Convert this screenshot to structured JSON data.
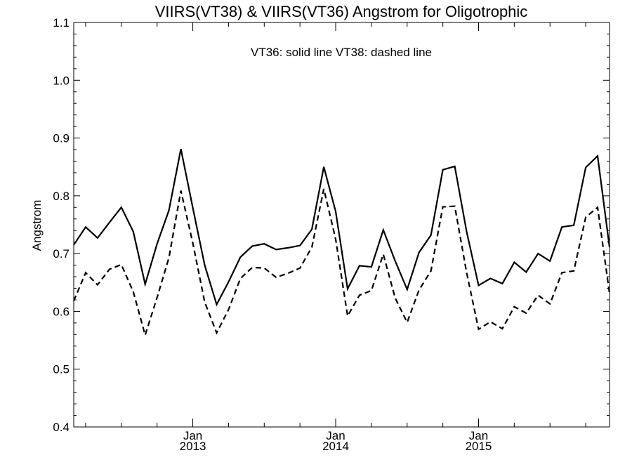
{
  "chart_data": {
    "type": "line",
    "title": "VIIRS(VT38) & VIIRS(VT36)  Angstrom for Oligotrophic",
    "annotation": "VT36: solid line   VT38: dashed line",
    "xlabel": "",
    "ylabel": "Angstrom",
    "ylim": [
      0.4,
      1.1
    ],
    "yticks": [
      0.4,
      0.5,
      0.6,
      0.7,
      0.8,
      0.9,
      1.0,
      1.1
    ],
    "ytick_labels": [
      "0.4",
      "0.5",
      "0.6",
      "0.7",
      "0.8",
      "0.9",
      "1.0",
      "1.1"
    ],
    "x_range": [
      "2012-03",
      "2015-12"
    ],
    "xticks_major": [
      {
        "x": "2013-01",
        "line1": "Jan",
        "line2": "2013"
      },
      {
        "x": "2014-01",
        "line1": "Jan",
        "line2": "2014"
      },
      {
        "x": "2015-01",
        "line1": "Jan",
        "line2": "2015"
      }
    ],
    "xticks_minor": [
      "2012-04",
      "2012-07",
      "2012-10",
      "2013-04",
      "2013-07",
      "2013-10",
      "2014-04",
      "2014-07",
      "2014-10",
      "2015-04",
      "2015-07",
      "2015-10"
    ],
    "grid": false,
    "legend": "none",
    "x": [
      "2012-03",
      "2012-04",
      "2012-05",
      "2012-06",
      "2012-07",
      "2012-08",
      "2012-09",
      "2012-10",
      "2012-11",
      "2012-12",
      "2013-01",
      "2013-02",
      "2013-03",
      "2013-04",
      "2013-05",
      "2013-06",
      "2013-07",
      "2013-08",
      "2013-09",
      "2013-10",
      "2013-11",
      "2013-12",
      "2014-01",
      "2014-02",
      "2014-03",
      "2014-04",
      "2014-05",
      "2014-06",
      "2014-07",
      "2014-08",
      "2014-09",
      "2014-10",
      "2014-11",
      "2014-12",
      "2015-01",
      "2015-02",
      "2015-03",
      "2015-04",
      "2015-05",
      "2015-06",
      "2015-07",
      "2015-08",
      "2015-09",
      "2015-10",
      "2015-11",
      "2015-12"
    ],
    "series": [
      {
        "name": "VT36",
        "style": "solid",
        "values": [
          0.715,
          0.746,
          0.727,
          0.754,
          0.78,
          0.738,
          0.647,
          0.717,
          0.775,
          0.881,
          0.779,
          0.68,
          0.612,
          0.651,
          0.694,
          0.713,
          0.717,
          0.707,
          0.71,
          0.714,
          0.742,
          0.85,
          0.773,
          0.639,
          0.679,
          0.677,
          0.741,
          0.687,
          0.638,
          0.702,
          0.732,
          0.845,
          0.851,
          0.738,
          0.645,
          0.657,
          0.648,
          0.685,
          0.668,
          0.7,
          0.687,
          0.746,
          0.749,
          0.849,
          0.869,
          0.711
        ]
      },
      {
        "name": "VT38",
        "style": "dashed",
        "values": [
          0.618,
          0.667,
          0.646,
          0.673,
          0.681,
          0.634,
          0.559,
          0.624,
          0.693,
          0.809,
          0.718,
          0.616,
          0.563,
          0.603,
          0.657,
          0.676,
          0.675,
          0.659,
          0.666,
          0.675,
          0.711,
          0.812,
          0.725,
          0.592,
          0.628,
          0.636,
          0.699,
          0.623,
          0.581,
          0.637,
          0.67,
          0.781,
          0.782,
          0.667,
          0.569,
          0.582,
          0.57,
          0.608,
          0.597,
          0.628,
          0.613,
          0.667,
          0.67,
          0.763,
          0.78,
          0.631
        ]
      }
    ]
  }
}
